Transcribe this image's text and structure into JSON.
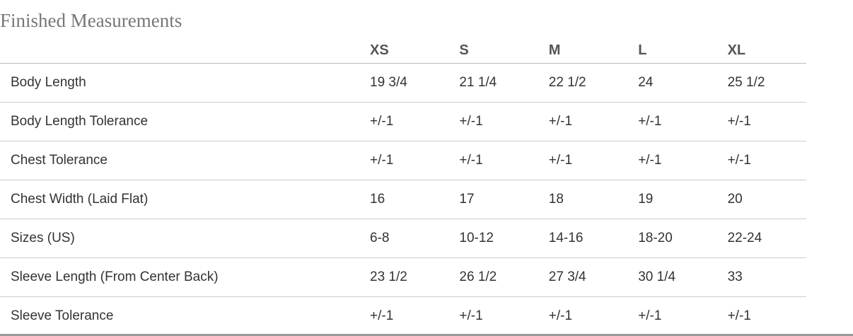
{
  "title": "Finished Measurements",
  "columns": [
    "",
    "XS",
    "S",
    "M",
    "L",
    "XL"
  ],
  "rows": [
    {
      "label": "Body Length",
      "values": [
        "19 3/4",
        "21 1/4",
        "22 1/2",
        "24",
        "25 1/2"
      ]
    },
    {
      "label": "Body Length Tolerance",
      "values": [
        "+/-1",
        "+/-1",
        "+/-1",
        "+/-1",
        "+/-1"
      ]
    },
    {
      "label": "Chest Tolerance",
      "values": [
        "+/-1",
        "+/-1",
        "+/-1",
        "+/-1",
        "+/-1"
      ]
    },
    {
      "label": "Chest Width (Laid Flat)",
      "values": [
        "16",
        "17",
        "18",
        "19",
        "20"
      ]
    },
    {
      "label": "Sizes (US)",
      "values": [
        "6-8",
        "10-12",
        "14-16",
        "18-20",
        "22-24"
      ]
    },
    {
      "label": "Sleeve Length (From Center Back)",
      "values": [
        "23 1/2",
        "26 1/2",
        "27 3/4",
        "30 1/4",
        "33"
      ]
    },
    {
      "label": "Sleeve Tolerance",
      "values": [
        "+/-1",
        "+/-1",
        "+/-1",
        "+/-1",
        "+/-1"
      ]
    }
  ]
}
